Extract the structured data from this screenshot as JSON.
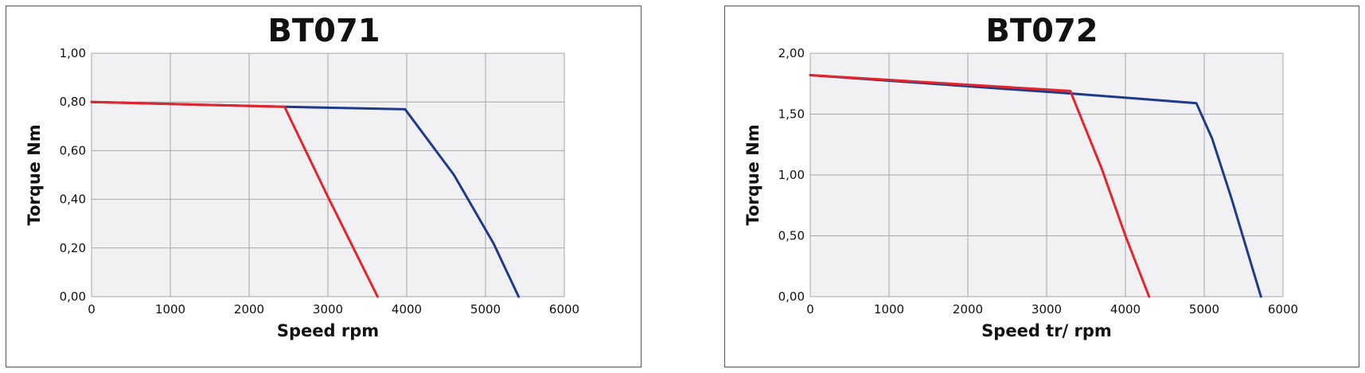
{
  "chart_data": [
    {
      "type": "line",
      "title": "BT071",
      "xlabel": "Speed rpm",
      "ylabel": "Torque Nm",
      "xlim": [
        0,
        6000
      ],
      "ylim": [
        0,
        1.0
      ],
      "xticks": [
        "0",
        "1000",
        "2000",
        "3000",
        "4000",
        "5000",
        "6000"
      ],
      "yticks": [
        "0,00",
        "0,20",
        "0,40",
        "0,60",
        "0,80",
        "1,00"
      ],
      "grid": true,
      "legend": "none",
      "series": [
        {
          "color": "#1f3a8a",
          "x": [
            0,
            2450,
            3980,
            4600,
            5100,
            5420
          ],
          "y": [
            0.8,
            0.78,
            0.77,
            0.5,
            0.22,
            0.0
          ]
        },
        {
          "color": "#e3242b",
          "x": [
            0,
            2450,
            3000,
            3630
          ],
          "y": [
            0.8,
            0.78,
            0.41,
            0.0
          ]
        }
      ]
    },
    {
      "type": "line",
      "title": "BT072",
      "xlabel": "Speed tr/ rpm",
      "ylabel": "Torque Nm",
      "xlim": [
        0,
        6000
      ],
      "ylim": [
        0,
        2.0
      ],
      "xticks": [
        "0",
        "1000",
        "2000",
        "3000",
        "4000",
        "5000",
        "6000"
      ],
      "yticks": [
        "0,00",
        "0,50",
        "1,00",
        "1,50",
        "2,00"
      ],
      "grid": true,
      "legend": "none",
      "series": [
        {
          "color": "#1f3a8a",
          "x": [
            0,
            3300,
            4900,
            5100,
            5350,
            5720
          ],
          "y": [
            1.82,
            1.67,
            1.59,
            1.3,
            0.8,
            0.0
          ]
        },
        {
          "color": "#e3242b",
          "x": [
            0,
            3300,
            3700,
            4000,
            4300
          ],
          "y": [
            1.82,
            1.69,
            1.05,
            0.5,
            0.0
          ]
        }
      ]
    }
  ]
}
